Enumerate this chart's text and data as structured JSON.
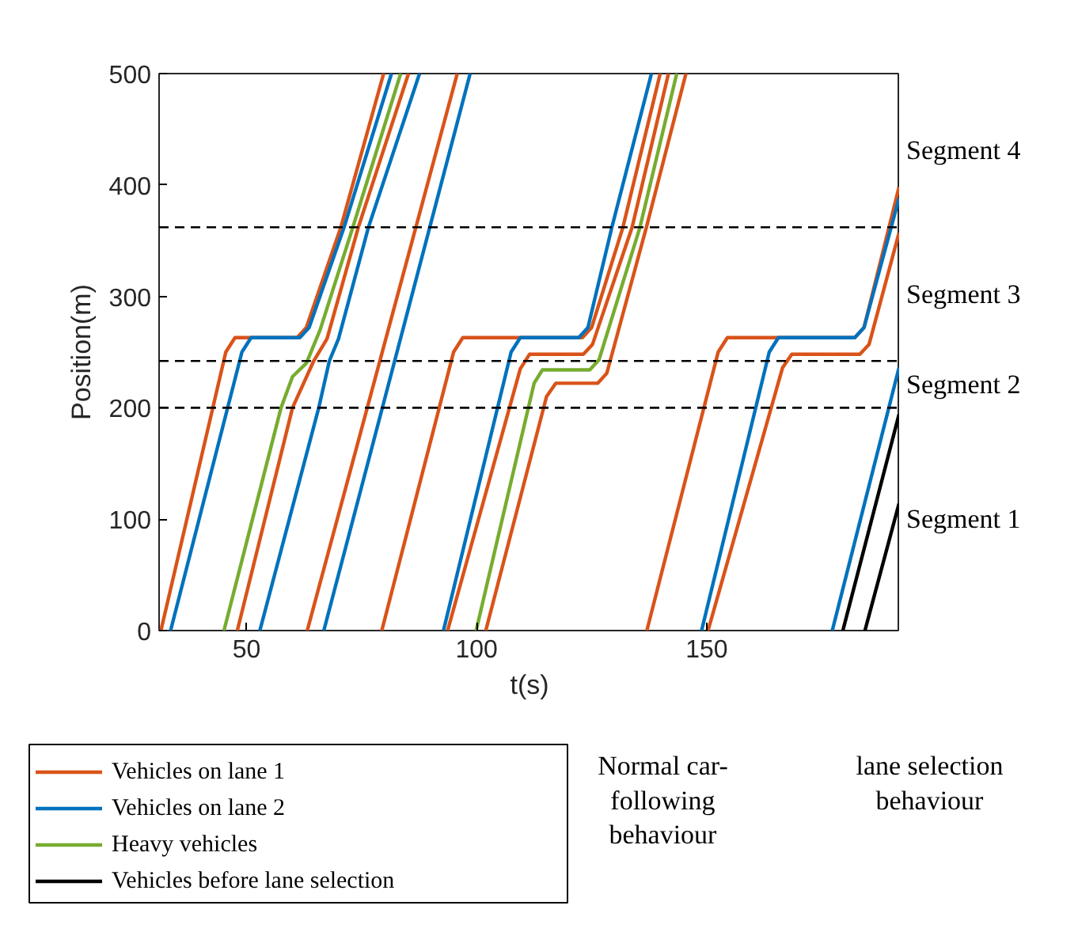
{
  "chart_data": {
    "type": "line",
    "xlabel": "t(s)",
    "ylabel": "Position(m)",
    "xlim": [
      31,
      192
    ],
    "ylim": [
      0,
      500
    ],
    "xticks": [
      50,
      100,
      150
    ],
    "yticks": [
      0,
      100,
      200,
      300,
      400,
      500
    ],
    "grid": false,
    "legend": "bottom left",
    "line_style": "solid",
    "marker": "none",
    "series": [
      {
        "name": "Vehicles on lane 1",
        "color": "#d95319",
        "x": [
          31.4,
          45.5,
          47.5,
          61,
          63,
          70.5,
          79.8,
          null,
          48,
          60,
          64.6,
          67.5,
          74.3,
          85.2,
          null,
          63.2,
          95.8,
          null,
          79.4,
          95,
          97,
          123,
          125,
          131.8,
          139.9,
          null,
          93.7,
          109.5,
          111.5,
          123.2,
          125.2,
          133.8,
          141.7,
          null,
          102,
          115.2,
          117.2,
          126.3,
          128.3,
          136.9,
          145.5,
          null,
          137,
          152.5,
          154.5,
          182.2,
          184.2,
          191.8,
          null,
          150.3,
          166.5,
          168.5,
          183.3,
          185.3,
          191.8
        ],
        "values": [
          0,
          250,
          263,
          263,
          272,
          362,
          500,
          null,
          0,
          200,
          242,
          262,
          362,
          500,
          null,
          0,
          500,
          null,
          0,
          250,
          263,
          263,
          272,
          362,
          500,
          null,
          0,
          235,
          248,
          248,
          257,
          362,
          500,
          null,
          0,
          210,
          222,
          222,
          231,
          362,
          500,
          null,
          0,
          250,
          263,
          263,
          272,
          398,
          null,
          0,
          236,
          248,
          248,
          257,
          357
        ]
      },
      {
        "name": "Vehicles on lane 2",
        "color": "#0072bd",
        "x": [
          33.5,
          49,
          51,
          61.6,
          63.6,
          71.2,
          81.5,
          null,
          52.9,
          65.7,
          68,
          70,
          76.5,
          87.6,
          null,
          66.8,
          98.6,
          null,
          92.8,
          107.5,
          109.5,
          122.2,
          124.2,
          129.4,
          138,
          null,
          148.9,
          163.6,
          165.6,
          182.2,
          184.2,
          191.8,
          null,
          177.3,
          191.8
        ],
        "values": [
          0,
          250,
          263,
          263,
          272,
          362,
          500,
          null,
          0,
          200,
          242,
          262,
          362,
          500,
          null,
          0,
          500,
          null,
          0,
          250,
          263,
          263,
          272,
          362,
          500,
          null,
          0,
          250,
          263,
          263,
          272,
          388,
          null,
          0,
          236
        ]
      },
      {
        "name": "Heavy vehicles",
        "color": "#77ac30",
        "x": [
          45.1,
          57.5,
          60,
          63,
          66,
          73.1,
          83.5,
          null,
          99.9,
          112.5,
          114.3,
          124.6,
          126.6,
          135.5,
          143.5
        ],
        "values": [
          0,
          200,
          228,
          240,
          270,
          362,
          500,
          null,
          0,
          222,
          234,
          234,
          243,
          362,
          500
        ]
      },
      {
        "name": "Vehicles before lane selection",
        "color": "#000000",
        "x": [
          179.6,
          191.8,
          null,
          184.4,
          191.8
        ],
        "values": [
          0,
          194,
          null,
          0,
          114
        ]
      }
    ],
    "ref_lines": [
      {
        "axis": "y",
        "value": 200,
        "line_style": "dashed",
        "color": "#000000"
      },
      {
        "axis": "y",
        "value": 242,
        "line_style": "dashed",
        "color": "#000000"
      },
      {
        "axis": "y",
        "value": 362,
        "line_style": "dashed",
        "color": "#000000"
      }
    ],
    "annotations": [
      "Segment 1",
      "Segment 2",
      "Segment 3",
      "Segment 4",
      "Normal car-following behaviour",
      "lane selection behaviour"
    ]
  }
}
